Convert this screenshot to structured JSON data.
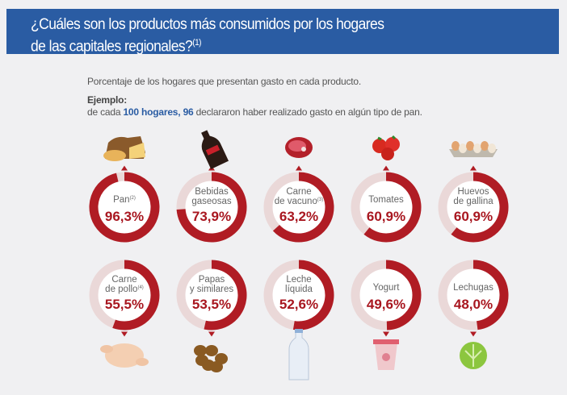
{
  "header": {
    "title_line1": "¿Cuáles son los productos más consumidos por los hogares",
    "title_line2": "de las capitales regionales?",
    "title_note": "(1)"
  },
  "subtitle": "Porcentaje de los hogares que presentan gasto en cada producto.",
  "example": {
    "label": "Ejemplo:",
    "pre": "de cada ",
    "hl1": "100 hogares,",
    "hl2": "96",
    "post": " declararon haber realizado gasto en algún tipo de pan."
  },
  "colors": {
    "fill": "#b01c24",
    "track": "#ead8d8",
    "header": "#2a5ca3"
  },
  "chart_data": {
    "type": "donut",
    "title": "Porcentaje de los hogares que presentan gasto en cada producto",
    "unit": "%",
    "items": [
      {
        "label": [
          "Pan"
        ],
        "note": "(2)",
        "value": 96.3,
        "display": "96,3%",
        "icon": "bread-icon"
      },
      {
        "label": [
          "Bebidas",
          "gaseosas"
        ],
        "note": "",
        "value": 73.9,
        "display": "73,9%",
        "icon": "soda-bottle-icon"
      },
      {
        "label": [
          "Carne",
          "de vacuno"
        ],
        "note": "(3)",
        "value": 63.2,
        "display": "63,2%",
        "icon": "beef-icon"
      },
      {
        "label": [
          "Tomates"
        ],
        "note": "",
        "value": 60.9,
        "display": "60,9%",
        "icon": "tomato-icon"
      },
      {
        "label": [
          "Huevos",
          "de gallina"
        ],
        "note": "",
        "value": 60.9,
        "display": "60,9%",
        "icon": "eggs-icon"
      },
      {
        "label": [
          "Carne",
          "de pollo"
        ],
        "note": "(4)",
        "value": 55.5,
        "display": "55,5%",
        "icon": "chicken-icon"
      },
      {
        "label": [
          "Papas",
          "y similares"
        ],
        "note": "",
        "value": 53.5,
        "display": "53,5%",
        "icon": "potato-icon"
      },
      {
        "label": [
          "Leche",
          "líquida"
        ],
        "note": "",
        "value": 52.6,
        "display": "52,6%",
        "icon": "milk-bottle-icon"
      },
      {
        "label": [
          "Yogurt"
        ],
        "note": "",
        "value": 49.6,
        "display": "49,6%",
        "icon": "yogurt-icon"
      },
      {
        "label": [
          "Lechugas"
        ],
        "note": "",
        "value": 48.0,
        "display": "48,0%",
        "icon": "lettuce-icon"
      }
    ]
  }
}
